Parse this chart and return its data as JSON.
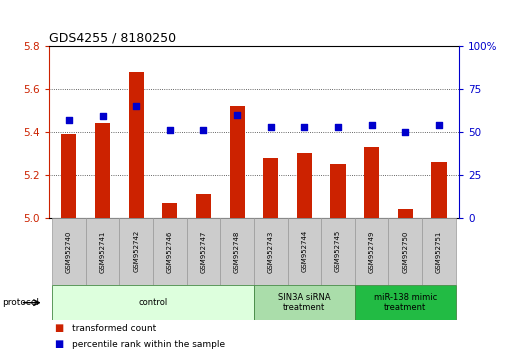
{
  "title": "GDS4255 / 8180250",
  "samples": [
    "GSM952740",
    "GSM952741",
    "GSM952742",
    "GSM952746",
    "GSM952747",
    "GSM952748",
    "GSM952743",
    "GSM952744",
    "GSM952745",
    "GSM952749",
    "GSM952750",
    "GSM952751"
  ],
  "transformed_count": [
    5.39,
    5.44,
    5.68,
    5.07,
    5.11,
    5.52,
    5.28,
    5.3,
    5.25,
    5.33,
    5.04,
    5.26
  ],
  "percentile_rank": [
    57,
    59,
    65,
    51,
    51,
    60,
    53,
    53,
    53,
    54,
    50,
    54
  ],
  "ylim_left": [
    5.0,
    5.8
  ],
  "ylim_right": [
    0,
    100
  ],
  "yticks_left": [
    5.0,
    5.2,
    5.4,
    5.6,
    5.8
  ],
  "yticks_right": [
    0,
    25,
    50,
    75,
    100
  ],
  "bar_color": "#cc2200",
  "dot_color": "#0000cc",
  "bar_base": 5.0,
  "groups": [
    {
      "label": "control",
      "start": 0,
      "end": 6,
      "color": "#ddffdd"
    },
    {
      "label": "SIN3A siRNA\ntreatment",
      "start": 6,
      "end": 9,
      "color": "#aaddaa"
    },
    {
      "label": "miR-138 mimic\ntreatment",
      "start": 9,
      "end": 12,
      "color": "#22bb44"
    }
  ],
  "protocol_label": "protocol",
  "legend_bar_label": "transformed count",
  "legend_dot_label": "percentile rank within the sample",
  "tick_label_color_left": "#cc2200",
  "tick_label_color_right": "#0000cc",
  "grid_color": "#333333",
  "xtick_bg": "#cccccc",
  "xtick_border": "#999999"
}
